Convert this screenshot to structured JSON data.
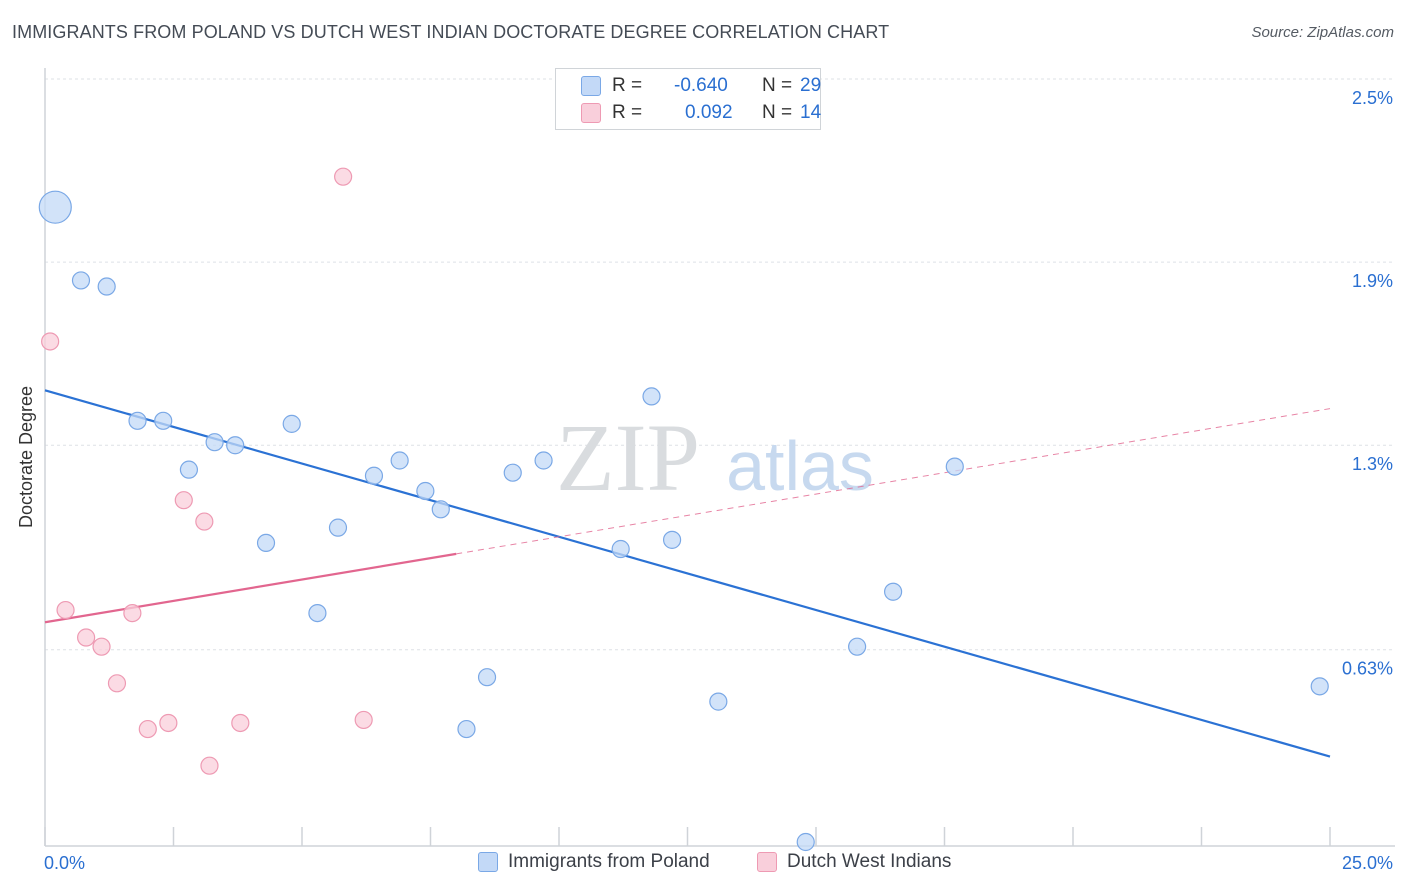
{
  "title": "IMMIGRANTS FROM POLAND VS DUTCH WEST INDIAN DOCTORATE DEGREE CORRELATION CHART",
  "source": "Source: ZipAtlas.com",
  "watermark": {
    "zip": "ZIP",
    "atlas": "atlas"
  },
  "legend_stats": [
    {
      "r_label": "R =",
      "r_value": "-0.640",
      "n_label": "N =",
      "n_value": "29"
    },
    {
      "r_label": "R =",
      "r_value": "0.092",
      "n_label": "N =",
      "n_value": "14"
    }
  ],
  "colors": {
    "blue_fill": "#c3d9f7",
    "blue_stroke": "#7aa8e6",
    "blue_line": "#2b72d4",
    "pink_fill": "#f9cfdb",
    "pink_stroke": "#ee9ab3",
    "pink_line": "#e2668f",
    "axis_label_blue": "#2a6fd1",
    "grid": "#dde1e6"
  },
  "chart_data": {
    "type": "scatter",
    "title": "IMMIGRANTS FROM POLAND VS DUTCH WEST INDIAN DOCTORATE DEGREE CORRELATION CHART",
    "xlabel": "",
    "ylabel": "Doctorate Degree",
    "xlim": [
      0,
      25
    ],
    "ylim": [
      0,
      2.5
    ],
    "x_tick_labels": [
      "0.0%",
      "25.0%"
    ],
    "y_ticks": [
      0.63,
      1.3,
      1.9,
      2.5
    ],
    "y_tick_labels": [
      "0.63%",
      "1.3%",
      "1.9%",
      "2.5%"
    ],
    "grid": true,
    "legend_position": "bottom",
    "series": [
      {
        "name": "Immigrants from Poland",
        "color": "#7aa8e6",
        "points": [
          {
            "x": 0.2,
            "y": 2.08,
            "size": "large"
          },
          {
            "x": 0.7,
            "y": 1.84
          },
          {
            "x": 1.2,
            "y": 1.82
          },
          {
            "x": 1.8,
            "y": 1.38
          },
          {
            "x": 2.3,
            "y": 1.38
          },
          {
            "x": 2.8,
            "y": 1.22
          },
          {
            "x": 3.3,
            "y": 1.31
          },
          {
            "x": 3.7,
            "y": 1.3
          },
          {
            "x": 4.3,
            "y": 0.98
          },
          {
            "x": 4.8,
            "y": 1.37
          },
          {
            "x": 5.3,
            "y": 0.75
          },
          {
            "x": 5.7,
            "y": 1.03
          },
          {
            "x": 6.4,
            "y": 1.2
          },
          {
            "x": 6.9,
            "y": 1.25
          },
          {
            "x": 7.4,
            "y": 1.15
          },
          {
            "x": 7.7,
            "y": 1.09
          },
          {
            "x": 8.2,
            "y": 0.37
          },
          {
            "x": 8.6,
            "y": 0.54
          },
          {
            "x": 9.1,
            "y": 1.21
          },
          {
            "x": 9.7,
            "y": 1.25
          },
          {
            "x": 11.2,
            "y": 0.96
          },
          {
            "x": 11.8,
            "y": 1.46
          },
          {
            "x": 12.2,
            "y": 0.99
          },
          {
            "x": 13.1,
            "y": 0.46
          },
          {
            "x": 14.8,
            "y": 0.0
          },
          {
            "x": 15.8,
            "y": 0.64
          },
          {
            "x": 16.5,
            "y": 0.82
          },
          {
            "x": 17.7,
            "y": 1.23
          },
          {
            "x": 24.8,
            "y": 0.51
          }
        ],
        "trend": {
          "x": [
            0,
            25
          ],
          "y": [
            1.48,
            0.28
          ]
        }
      },
      {
        "name": "Dutch West Indians",
        "color": "#ee9ab3",
        "points": [
          {
            "x": 0.1,
            "y": 1.64
          },
          {
            "x": 0.4,
            "y": 0.76
          },
          {
            "x": 0.8,
            "y": 0.67
          },
          {
            "x": 1.1,
            "y": 0.64
          },
          {
            "x": 1.4,
            "y": 0.52
          },
          {
            "x": 1.7,
            "y": 0.75
          },
          {
            "x": 2.0,
            "y": 0.37
          },
          {
            "x": 2.4,
            "y": 0.39
          },
          {
            "x": 2.7,
            "y": 1.12
          },
          {
            "x": 3.1,
            "y": 1.05
          },
          {
            "x": 3.2,
            "y": 0.25
          },
          {
            "x": 3.8,
            "y": 0.39
          },
          {
            "x": 5.8,
            "y": 2.18
          },
          {
            "x": 6.2,
            "y": 0.4
          }
        ],
        "trend": {
          "x": [
            0,
            25
          ],
          "y": [
            0.72,
            1.42
          ],
          "solid_until_x": 8
        }
      }
    ]
  }
}
